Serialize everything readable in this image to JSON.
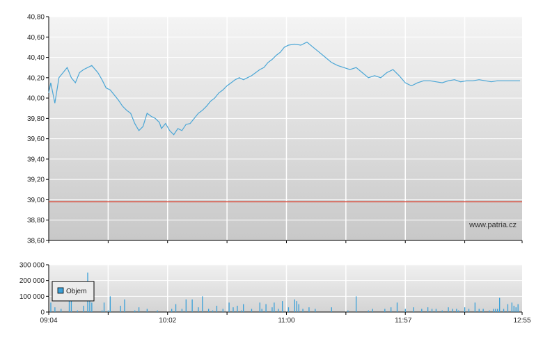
{
  "colors": {
    "price_line": "#4aa6d6",
    "reference_line": "#d94a3a",
    "volume_bar": "#3aa0d8",
    "legend_swatch": "#3aa0d8",
    "grid": "#ffffff",
    "panel_top": "#f4f4f4",
    "panel_bottom": "#c8c8c8"
  },
  "watermark": "www.patria.cz",
  "legend": {
    "label": "Objem"
  },
  "chart_data": [
    {
      "type": "line",
      "name": "price",
      "ylim": [
        38.6,
        40.8
      ],
      "y_ticks": [
        "38,60",
        "38,80",
        "39,00",
        "39,20",
        "39,40",
        "39,60",
        "39,80",
        "40,00",
        "40,20",
        "40,40",
        "40,60",
        "40,80"
      ],
      "reference_line": 38.98,
      "grid": true,
      "x_minutes": [
        0,
        1,
        3,
        5,
        7,
        9,
        11,
        13,
        15,
        17,
        19,
        21,
        24,
        26,
        28,
        30,
        34,
        36,
        38,
        40,
        42,
        44,
        46,
        48,
        50,
        52,
        54,
        55,
        57,
        59,
        61,
        63,
        65,
        67,
        69,
        71,
        73,
        75,
        77,
        79,
        81,
        83,
        85,
        87,
        89,
        91,
        93,
        95,
        97,
        99,
        101,
        103,
        105,
        107,
        109,
        111,
        113,
        115,
        117,
        120,
        123,
        126,
        129,
        132,
        135,
        138,
        141,
        144,
        147,
        150,
        153,
        156,
        159,
        162,
        165,
        168,
        171,
        174,
        177,
        180,
        183,
        186,
        189,
        192,
        195,
        198,
        201,
        204,
        207,
        210,
        213,
        216,
        219,
        222,
        225,
        228,
        230
      ],
      "y": [
        40.05,
        40.15,
        39.95,
        40.2,
        40.25,
        40.3,
        40.2,
        40.15,
        40.25,
        40.28,
        40.3,
        40.32,
        40.25,
        40.18,
        40.1,
        40.08,
        39.98,
        39.92,
        39.88,
        39.85,
        39.75,
        39.68,
        39.72,
        39.85,
        39.82,
        39.8,
        39.76,
        39.7,
        39.75,
        39.68,
        39.64,
        39.7,
        39.68,
        39.74,
        39.75,
        39.8,
        39.85,
        39.88,
        39.92,
        39.97,
        40.0,
        40.05,
        40.08,
        40.12,
        40.15,
        40.18,
        40.2,
        40.18,
        40.2,
        40.22,
        40.25,
        40.28,
        40.3,
        40.35,
        40.38,
        40.42,
        40.45,
        40.5,
        40.52,
        40.53,
        40.52,
        40.55,
        40.5,
        40.45,
        40.4,
        40.35,
        40.32,
        40.3,
        40.28,
        40.3,
        40.25,
        40.2,
        40.22,
        40.2,
        40.25,
        40.28,
        40.22,
        40.15,
        40.12,
        40.15,
        40.17,
        40.17,
        40.16,
        40.15,
        40.17,
        40.18,
        40.16,
        40.17,
        40.17,
        40.18,
        40.17,
        40.16,
        40.17,
        40.17,
        40.17,
        40.17,
        40.17
      ]
    },
    {
      "type": "bar",
      "name": "Objem",
      "ylim": [
        0,
        300000
      ],
      "y_ticks": [
        "0",
        "100 000",
        "200 000",
        "300 000"
      ],
      "x_ticks": [
        "09:04",
        "10:02",
        "11:00",
        "11:57",
        "12:55"
      ],
      "grid": true,
      "x_minutes": [
        1,
        3,
        6,
        10,
        11,
        14,
        17,
        19,
        20,
        21,
        26,
        27,
        29,
        30,
        35,
        37,
        42,
        44,
        48,
        53,
        60,
        62,
        65,
        67,
        70,
        73,
        75,
        78,
        80,
        82,
        85,
        88,
        90,
        92,
        94,
        95,
        99,
        103,
        104,
        106,
        109,
        110,
        112,
        114,
        117,
        120,
        121,
        122,
        124,
        127,
        130,
        138,
        146,
        150,
        156,
        158,
        164,
        167,
        170,
        174,
        178,
        182,
        185,
        187,
        189,
        192,
        195,
        197,
        199,
        200,
        203,
        205,
        208,
        210,
        212,
        215,
        217,
        218,
        219,
        220,
        222,
        224,
        226,
        227,
        228,
        229
      ],
      "values": [
        60000,
        30000,
        20000,
        70000,
        80000,
        10000,
        40000,
        250000,
        80000,
        60000,
        10000,
        60000,
        10000,
        100000,
        40000,
        80000,
        10000,
        30000,
        20000,
        10000,
        20000,
        50000,
        20000,
        80000,
        80000,
        30000,
        100000,
        20000,
        10000,
        40000,
        20000,
        60000,
        30000,
        40000,
        10000,
        50000,
        20000,
        60000,
        20000,
        50000,
        30000,
        60000,
        20000,
        70000,
        30000,
        80000,
        70000,
        50000,
        20000,
        30000,
        20000,
        30000,
        10000,
        100000,
        10000,
        20000,
        20000,
        30000,
        60000,
        20000,
        30000,
        20000,
        30000,
        20000,
        20000,
        10000,
        30000,
        20000,
        20000,
        10000,
        30000,
        20000,
        60000,
        20000,
        20000,
        10000,
        20000,
        20000,
        20000,
        90000,
        20000,
        50000,
        60000,
        40000,
        30000,
        50000
      ]
    }
  ]
}
